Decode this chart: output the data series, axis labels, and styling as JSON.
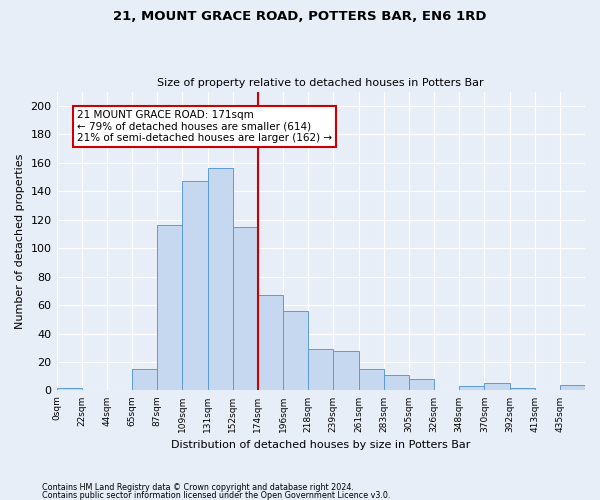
{
  "title": "21, MOUNT GRACE ROAD, POTTERS BAR, EN6 1RD",
  "subtitle": "Size of property relative to detached houses in Potters Bar",
  "xlabel": "Distribution of detached houses by size in Potters Bar",
  "ylabel": "Number of detached properties",
  "bar_color": "#c5d8f0",
  "bar_edge_color": "#5b9bd5",
  "background_color": "#e8eef8",
  "grid_color": "#ffffff",
  "bin_labels": [
    "0sqm",
    "22sqm",
    "44sqm",
    "65sqm",
    "87sqm",
    "109sqm",
    "131sqm",
    "152sqm",
    "174sqm",
    "196sqm",
    "218sqm",
    "239sqm",
    "261sqm",
    "283sqm",
    "305sqm",
    "326sqm",
    "348sqm",
    "370sqm",
    "392sqm",
    "413sqm",
    "435sqm"
  ],
  "bar_heights": [
    2,
    0,
    0,
    15,
    116,
    147,
    156,
    115,
    67,
    56,
    29,
    28,
    15,
    11,
    8,
    0,
    3,
    5,
    2,
    0,
    4
  ],
  "vline_position": 8,
  "vline_color": "#cc0000",
  "annotation_title": "21 MOUNT GRACE ROAD: 171sqm",
  "annotation_line1": "← 79% of detached houses are smaller (614)",
  "annotation_line2": "21% of semi-detached houses are larger (162) →",
  "annotation_box_edge": "#cc0000",
  "ylim": [
    0,
    210
  ],
  "yticks": [
    0,
    20,
    40,
    60,
    80,
    100,
    120,
    140,
    160,
    180,
    200
  ],
  "footer1": "Contains HM Land Registry data © Crown copyright and database right 2024.",
  "footer2": "Contains public sector information licensed under the Open Government Licence v3.0."
}
